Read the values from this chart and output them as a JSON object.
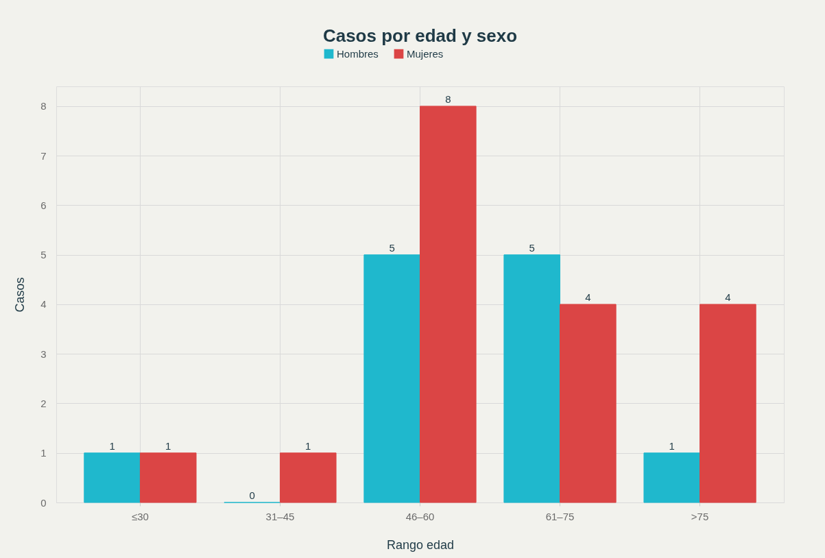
{
  "chart_data": {
    "type": "bar",
    "title": "Casos por edad y sexo",
    "xlabel": "Rango edad",
    "ylabel": "Casos",
    "categories": [
      "≤30",
      "31–45",
      "46–60",
      "61–75",
      ">75"
    ],
    "series": [
      {
        "name": "Hombres",
        "color": "#1fb8cd",
        "values": [
          1,
          0,
          5,
          5,
          1
        ]
      },
      {
        "name": "Mujeres",
        "color": "#db4545",
        "values": [
          1,
          1,
          8,
          4,
          4
        ]
      }
    ],
    "ylim": [
      0,
      8.4
    ],
    "yticks": [
      0,
      1,
      2,
      3,
      4,
      5,
      6,
      7,
      8
    ],
    "grid": true,
    "legend": "top",
    "data_labels": true
  }
}
